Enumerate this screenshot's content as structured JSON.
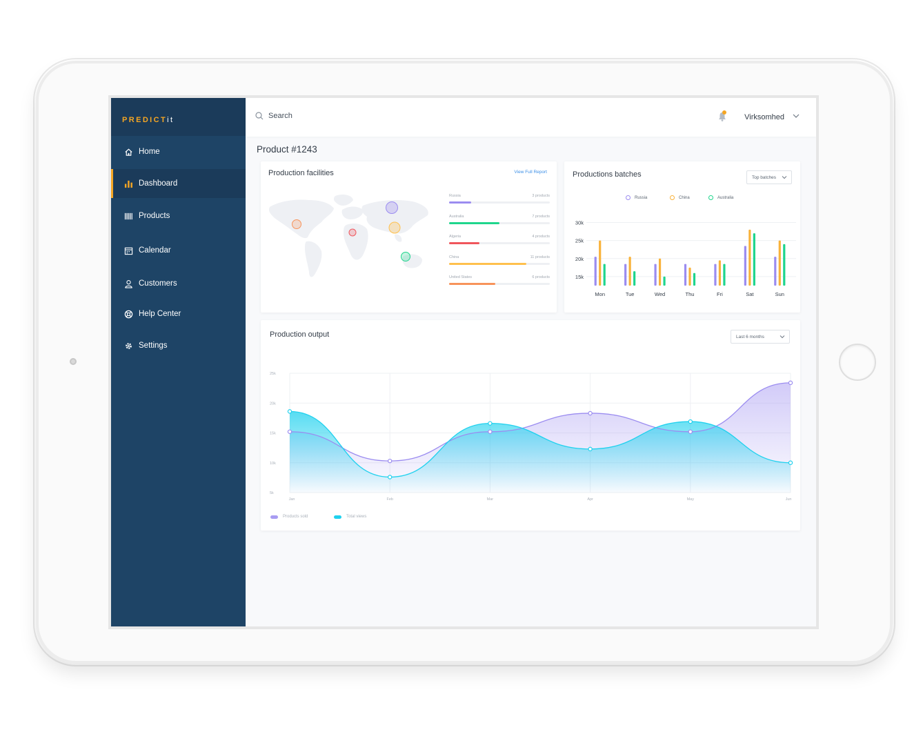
{
  "app": {
    "logo_main": "PREDICT",
    "logo_suffix": "it"
  },
  "sidebar": {
    "items": [
      {
        "label": "Home",
        "icon": "home-icon",
        "active": false
      },
      {
        "label": "Dashboard",
        "icon": "bar-chart-icon",
        "active": true
      },
      {
        "label": "Products",
        "icon": "barcode-icon",
        "active": false
      },
      {
        "label": "Calendar",
        "icon": "calendar-icon",
        "active": false
      },
      {
        "label": "Customers",
        "icon": "user-icon",
        "active": false
      },
      {
        "label": "Help Center",
        "icon": "lifebuoy-icon",
        "active": false
      },
      {
        "label": "Settings",
        "icon": "gear-icon",
        "active": false
      }
    ]
  },
  "header": {
    "search_label": "Search",
    "company": "Virksomhed",
    "notifications_icon": "bell-icon"
  },
  "page": {
    "title": "Product #1243"
  },
  "facilities": {
    "title": "Production facilities",
    "link": "View Full Report",
    "countries": [
      {
        "name": "Russia",
        "count": "3 products",
        "fill": 0.22,
        "color": "#9b8cf0"
      },
      {
        "name": "Australia",
        "count": "7 products",
        "fill": 0.5,
        "color": "#1ed58c"
      },
      {
        "name": "Algeria",
        "count": "4 products",
        "fill": 0.3,
        "color": "#f0555b"
      },
      {
        "name": "China",
        "count": "11 products",
        "fill": 0.77,
        "color": "#ffc04d"
      },
      {
        "name": "United States",
        "count": "6 products",
        "fill": 0.46,
        "color": "#f7935a"
      }
    ]
  },
  "colors": {
    "purple": "#9b8cf0",
    "orange": "#f9b23a",
    "green": "#1ed58c",
    "cyan": "#1fd1ee",
    "sidebar": "#1e4466",
    "accent": "#f5a623"
  },
  "batches": {
    "title": "Productions batches",
    "dropdown": "Top batches",
    "chart_data": {
      "type": "bar",
      "categories": [
        "Mon",
        "Tue",
        "Wed",
        "Thu",
        "Fri",
        "Sat",
        "Sun"
      ],
      "series": [
        {
          "name": "Russia",
          "values": [
            20.5,
            18.5,
            18.5,
            18.5,
            18.5,
            23.5,
            20.5
          ]
        },
        {
          "name": "China",
          "values": [
            25,
            20.5,
            20,
            17.5,
            19.5,
            28,
            25
          ]
        },
        {
          "name": "Australia",
          "values": [
            18.5,
            16.5,
            15,
            16,
            18.5,
            27,
            24
          ]
        }
      ],
      "yticks": [
        "30k",
        "25k",
        "20k",
        "15k"
      ],
      "ylim": [
        12.5,
        32
      ],
      "legend_position": "top"
    }
  },
  "output": {
    "title": "Production output",
    "dropdown": "Last 6 months",
    "chart_data": {
      "type": "area",
      "x": [
        "Jan",
        "Feb",
        "Mar",
        "Apr",
        "May",
        "Jun"
      ],
      "series": [
        {
          "name": "Products sold",
          "values": [
            15.2,
            10.3,
            15.2,
            18.3,
            15.2,
            23.4
          ]
        },
        {
          "name": "Total views",
          "values": [
            18.6,
            7.6,
            16.6,
            12.3,
            16.9,
            10
          ]
        }
      ],
      "yticks": [
        "25k",
        "20k",
        "15k",
        "10k",
        "5k"
      ],
      "ylim": [
        5,
        25
      ],
      "grid": true,
      "legend_position": "bottom-left"
    }
  }
}
